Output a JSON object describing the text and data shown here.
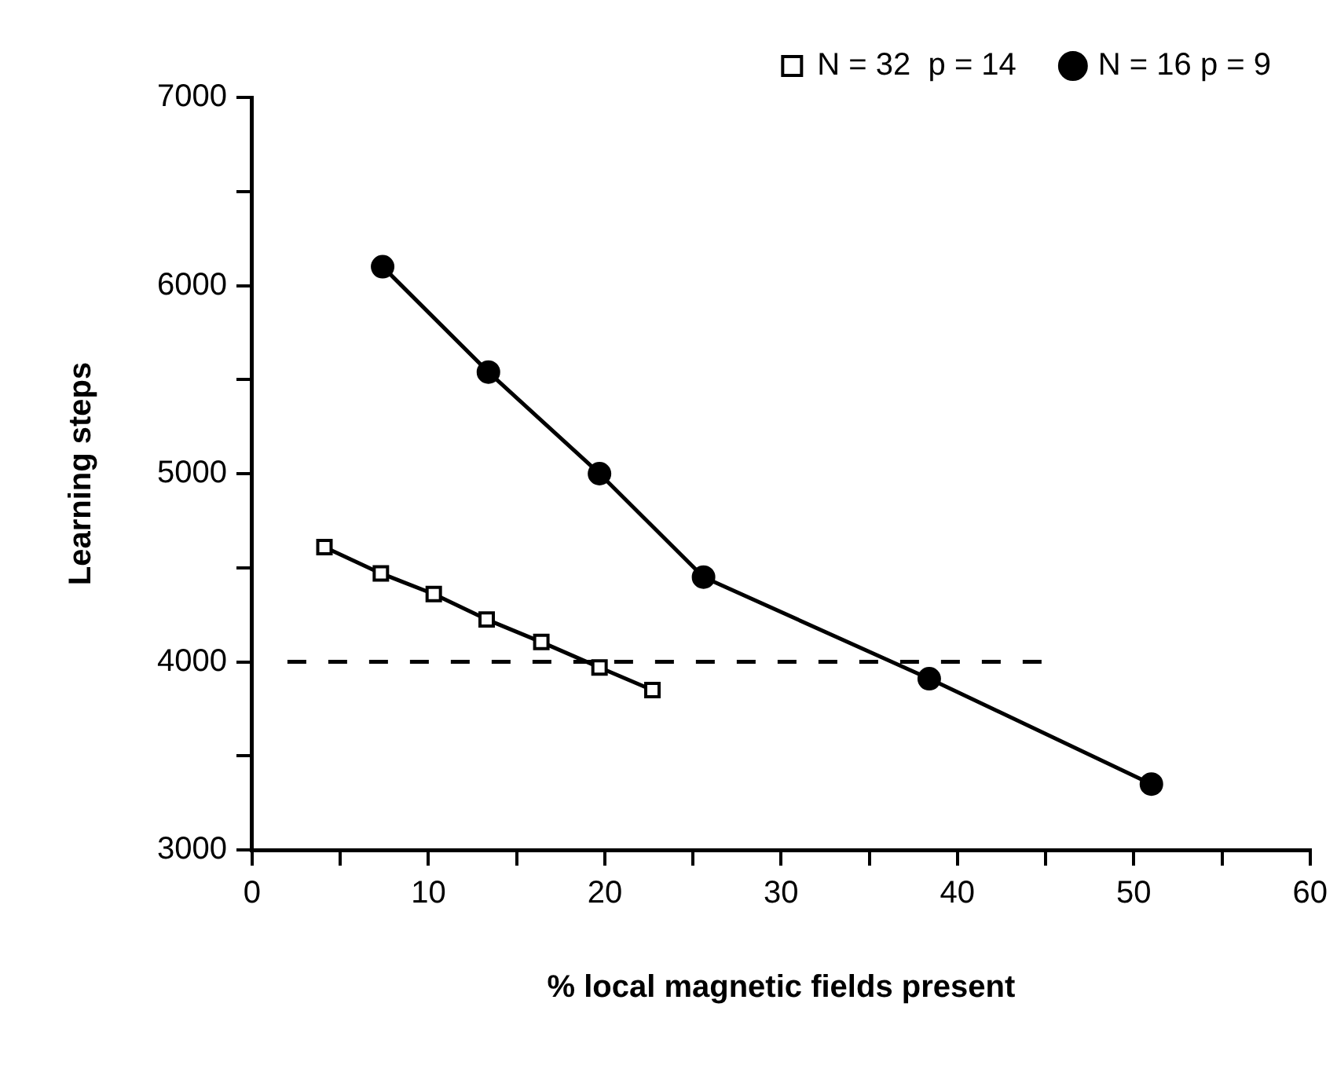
{
  "chart_data": {
    "type": "line",
    "xlabel": "% local magnetic fields present",
    "ylabel": "Learning steps",
    "xlim": [
      0,
      60
    ],
    "xticks": [
      0,
      {
        "value": 5,
        "label": null
      },
      10,
      {
        "value": 15,
        "label": null
      },
      20,
      {
        "value": 25,
        "label": null
      },
      30,
      {
        "value": 35,
        "label": null
      },
      40,
      {
        "value": 45,
        "label": null
      },
      50,
      {
        "value": 55,
        "label": null
      },
      60
    ],
    "ylim": [
      3000,
      7000
    ],
    "yticks": [
      3000,
      {
        "value": 3500,
        "label": null
      },
      4000,
      {
        "value": 4500,
        "label": null
      },
      5000,
      {
        "value": 5500,
        "label": null
      },
      6000,
      {
        "value": 6500,
        "label": null
      },
      7000
    ],
    "grid": false,
    "legend": "top right",
    "series": [
      {
        "name": "N = 32  p = 14",
        "color": "#000000",
        "marker": "square",
        "x": [
          4.1,
          7.3,
          10.3,
          13.3,
          16.4,
          19.7,
          22.7
        ],
        "values": [
          4610,
          4470,
          4360,
          4225,
          4105,
          3970,
          3850
        ]
      },
      {
        "name": "N = 16 p = 9",
        "color": "#000000",
        "marker": "circle",
        "x": [
          7.4,
          13.4,
          19.7,
          25.6,
          38.4,
          51.0
        ],
        "values": [
          6100,
          5540,
          5000,
          4450,
          3910,
          3350
        ]
      },
      {
        "color": "#000000",
        "marker": "none",
        "line_style": "dashed",
        "x": [
          2,
          45
        ],
        "values": [
          4000,
          4000
        ]
      }
    ]
  }
}
